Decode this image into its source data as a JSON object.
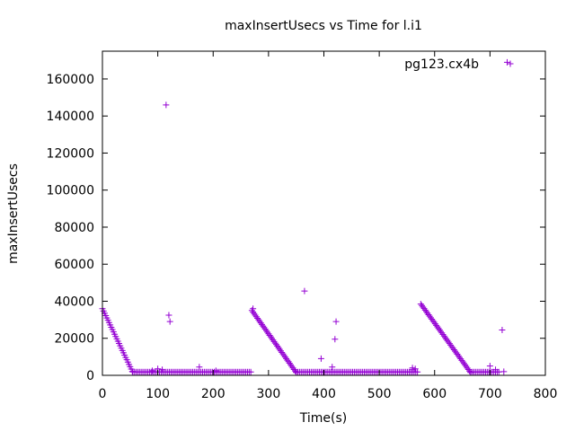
{
  "chart_data": {
    "type": "scatter",
    "title": "maxInsertUsecs vs Time for l.i1",
    "xlabel": "Time(s)",
    "ylabel": "maxInsertUsecs",
    "xlim": [
      0,
      800
    ],
    "ylim": [
      0,
      175000
    ],
    "xticks": [
      0,
      100,
      200,
      300,
      400,
      500,
      600,
      700,
      800
    ],
    "yticks": [
      0,
      20000,
      40000,
      60000,
      80000,
      100000,
      120000,
      140000,
      160000
    ],
    "grid": false,
    "legend_position": "top-right",
    "marker": "plus",
    "series": [
      {
        "name": "pg123.cx4b",
        "color": "#9400d3",
        "ramps": [
          {
            "x_start": 0,
            "y_start": 36000,
            "x_end": 55,
            "y_end": 1500,
            "step": 2
          },
          {
            "x_start": 270,
            "y_start": 35000,
            "x_end": 350,
            "y_end": 1500,
            "step": 2
          },
          {
            "x_start": 575,
            "y_start": 38500,
            "x_end": 665,
            "y_end": 1500,
            "step": 2
          }
        ],
        "floors": [
          {
            "x_start": 55,
            "x_end": 270,
            "y": 1800,
            "step": 3
          },
          {
            "x_start": 350,
            "x_end": 570,
            "y": 1800,
            "step": 3
          },
          {
            "x_start": 665,
            "x_end": 718,
            "y": 1800,
            "step": 3
          }
        ],
        "points": [
          [
            115,
            146000
          ],
          [
            120,
            32500
          ],
          [
            122,
            29000
          ],
          [
            100,
            3500
          ],
          [
            90,
            2500
          ],
          [
            108,
            3000
          ],
          [
            175,
            4500
          ],
          [
            205,
            2500
          ],
          [
            272,
            36000
          ],
          [
            365,
            45500
          ],
          [
            395,
            9000
          ],
          [
            415,
            4500
          ],
          [
            420,
            19500
          ],
          [
            422,
            29000
          ],
          [
            560,
            4000
          ],
          [
            565,
            3500
          ],
          [
            560,
            3000
          ],
          [
            700,
            5000
          ],
          [
            710,
            3000
          ],
          [
            722,
            24500
          ],
          [
            725,
            2000
          ],
          [
            731,
            169000
          ]
        ]
      }
    ]
  }
}
